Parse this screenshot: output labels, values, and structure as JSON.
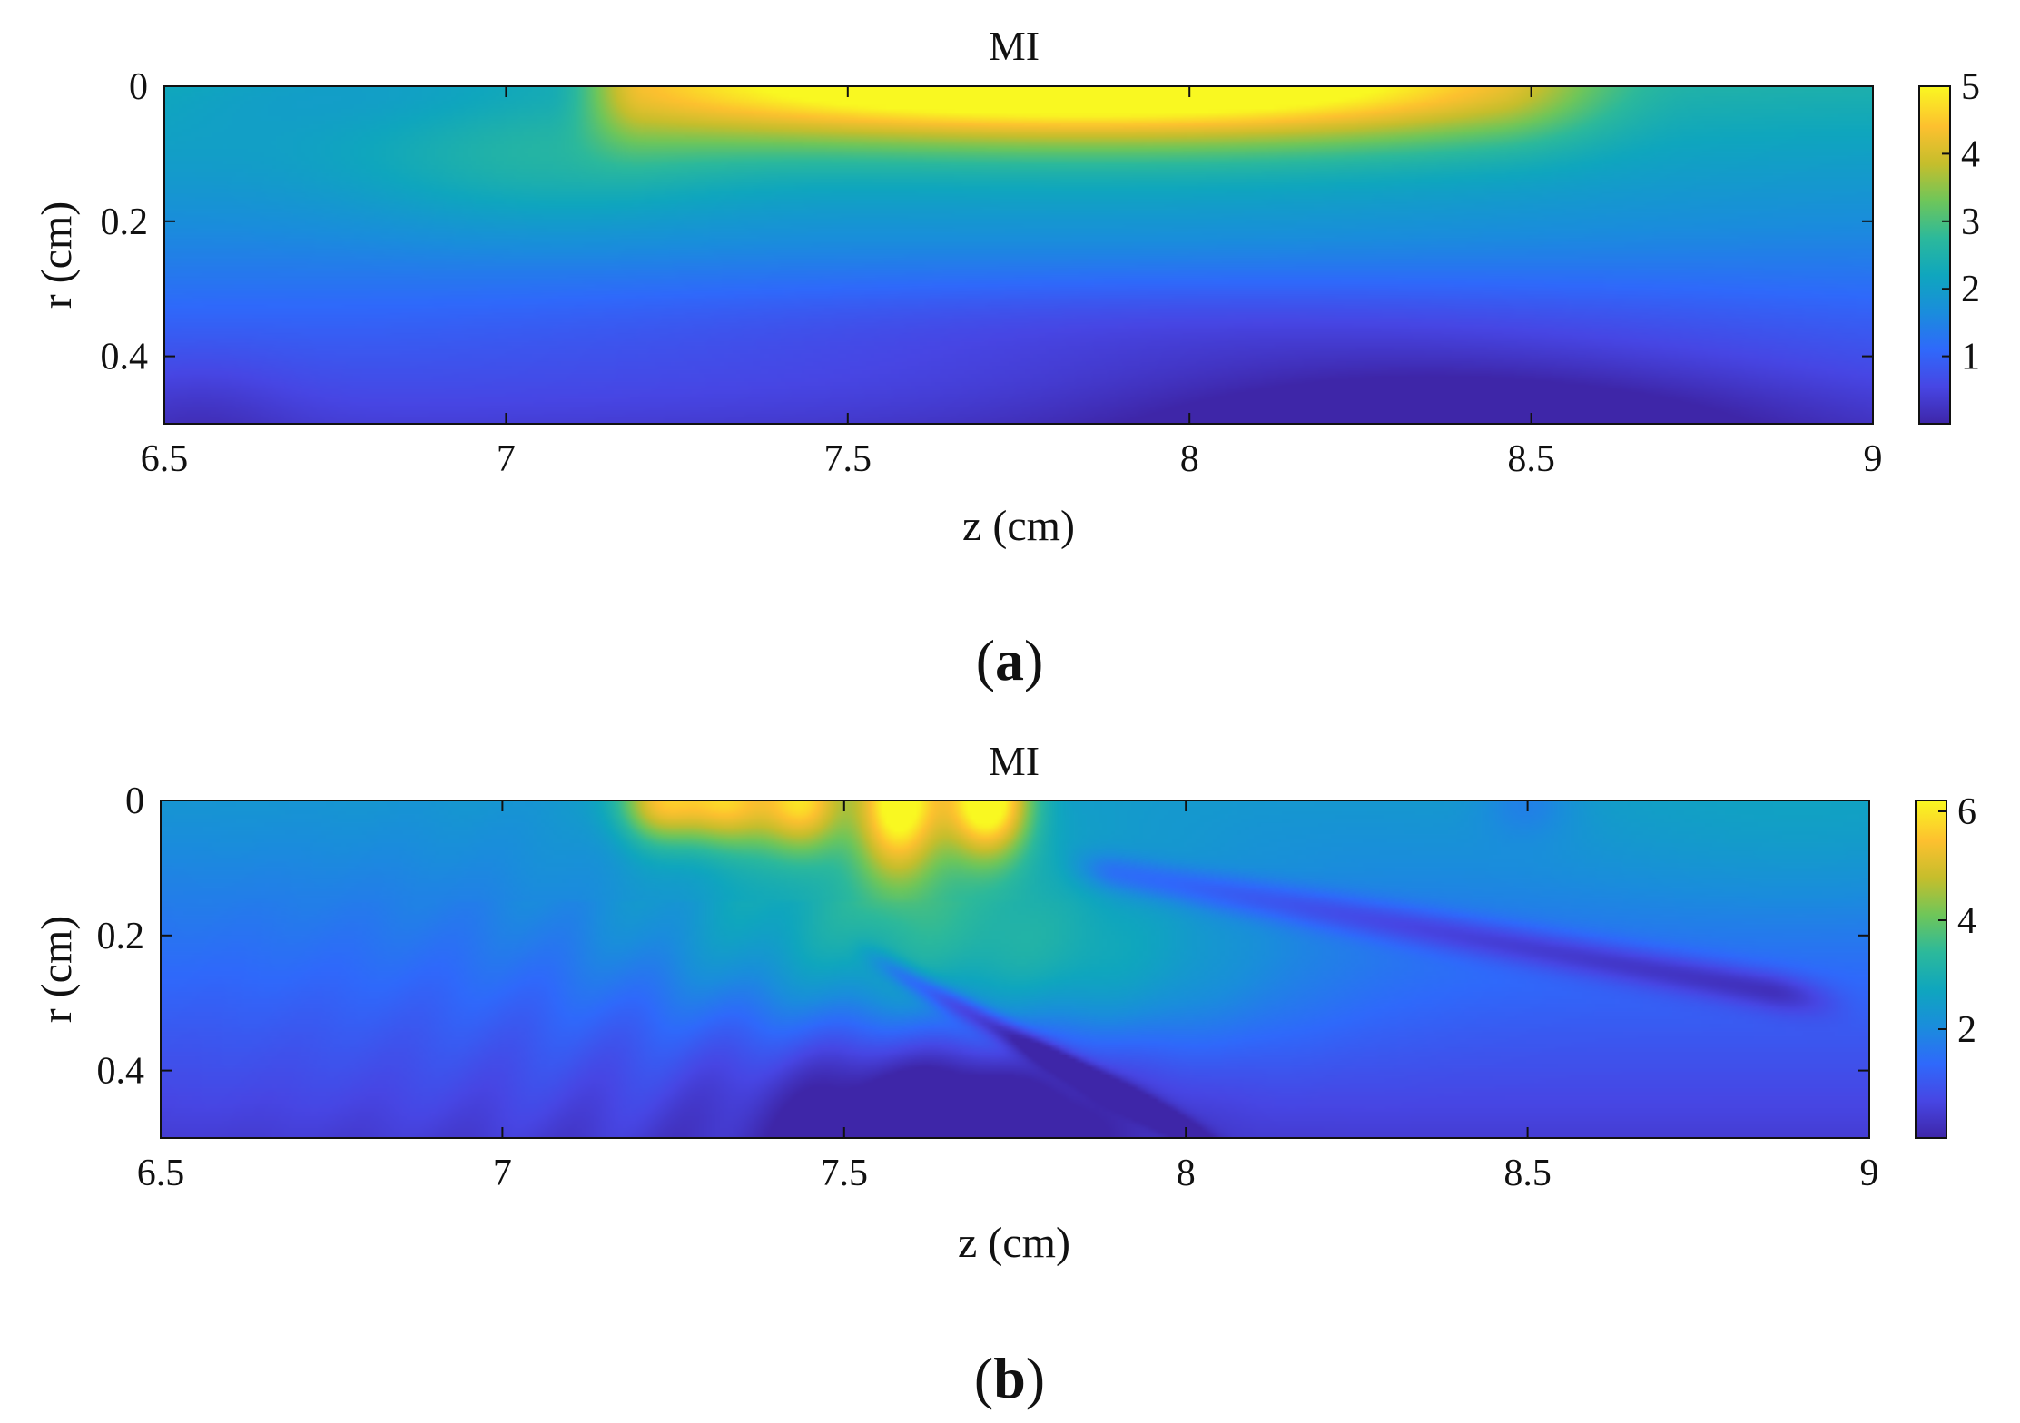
{
  "figure": {
    "colormap": [
      "#3e26a8",
      "#4746e4",
      "#2f69fb",
      "#1a8ddc",
      "#0fa6be",
      "#2cb99b",
      "#6ec65a",
      "#c5be2c",
      "#fdc02f",
      "#f9f821"
    ]
  },
  "chart_data": [
    {
      "type": "heatmap",
      "panel_label": "(a)",
      "panel_letter": "a",
      "title": "MI",
      "xlabel": "z (cm)",
      "ylabel": "r (cm)",
      "xlim": [
        6.5,
        9.0
      ],
      "ylim": [
        0.0,
        0.5
      ],
      "y_reversed": true,
      "xticks": [
        6.5,
        7,
        7.5,
        8,
        8.5,
        9
      ],
      "xtick_labels": [
        "6.5",
        "7",
        "7.5",
        "8",
        "8.5",
        "9"
      ],
      "yticks": [
        0,
        0.2,
        0.4
      ],
      "ytick_labels": [
        "0",
        "0.2",
        "0.4"
      ],
      "colorbar": {
        "min": 0,
        "max": 5,
        "ticks": [
          1,
          2,
          3,
          4,
          5
        ],
        "tick_labels": [
          "1",
          "2",
          "3",
          "4",
          "5"
        ]
      },
      "features": [
        {
          "kind": "ridge",
          "z": 7.65,
          "r": 0.0,
          "sz": 0.5,
          "sr": 0.06,
          "value": 5.0
        },
        {
          "kind": "ridge",
          "z": 8.15,
          "r": 0.0,
          "sz": 0.35,
          "sr": 0.07,
          "value": 3.9
        },
        {
          "kind": "ridge",
          "z": 7.05,
          "r": 0.1,
          "sz": 0.2,
          "sr": 0.08,
          "value": 3.0
        },
        {
          "kind": "trough",
          "z": 8.4,
          "r": 0.5,
          "sz": 0.35,
          "sr": 0.07,
          "value": 0.1
        }
      ]
    },
    {
      "type": "heatmap",
      "panel_label": "(b)",
      "panel_letter": "b",
      "title": "MI",
      "xlabel": "z (cm)",
      "ylabel": "r (cm)",
      "xlim": [
        6.5,
        9.0
      ],
      "ylim": [
        0.0,
        0.5
      ],
      "y_reversed": true,
      "xticks": [
        6.5,
        7,
        7.5,
        8,
        8.5,
        9
      ],
      "xtick_labels": [
        "6.5",
        "7",
        "7.5",
        "8",
        "8.5",
        "9"
      ],
      "yticks": [
        0,
        0.2,
        0.4
      ],
      "ytick_labels": [
        "0",
        "0.2",
        "0.4"
      ],
      "colorbar": {
        "min": 0,
        "max": 6.2,
        "ticks": [
          2,
          4,
          6
        ],
        "tick_labels": [
          "2",
          "4",
          "6"
        ]
      },
      "features": [
        {
          "kind": "lobe",
          "z": 7.23,
          "r": 0.0,
          "sz": 0.05,
          "sr": 0.045,
          "value": 5.2
        },
        {
          "kind": "lobe",
          "z": 7.33,
          "r": 0.0,
          "sz": 0.05,
          "sr": 0.05,
          "value": 5.3
        },
        {
          "kind": "lobe",
          "z": 7.44,
          "r": 0.0,
          "sz": 0.05,
          "sr": 0.055,
          "value": 5.4
        },
        {
          "kind": "lobe",
          "z": 7.58,
          "r": 0.01,
          "sz": 0.05,
          "sr": 0.08,
          "value": 6.0
        },
        {
          "kind": "lobe",
          "z": 7.71,
          "r": 0.0,
          "sz": 0.05,
          "sr": 0.06,
          "value": 6.2
        },
        {
          "kind": "trough",
          "z": 8.4,
          "r": 0.21,
          "sz": 0.7,
          "sr": 0.05,
          "value": 0.9
        },
        {
          "kind": "trough",
          "z": 7.7,
          "r": 0.38,
          "sz": 0.15,
          "sr": 0.1,
          "value": 0.4
        }
      ]
    }
  ]
}
